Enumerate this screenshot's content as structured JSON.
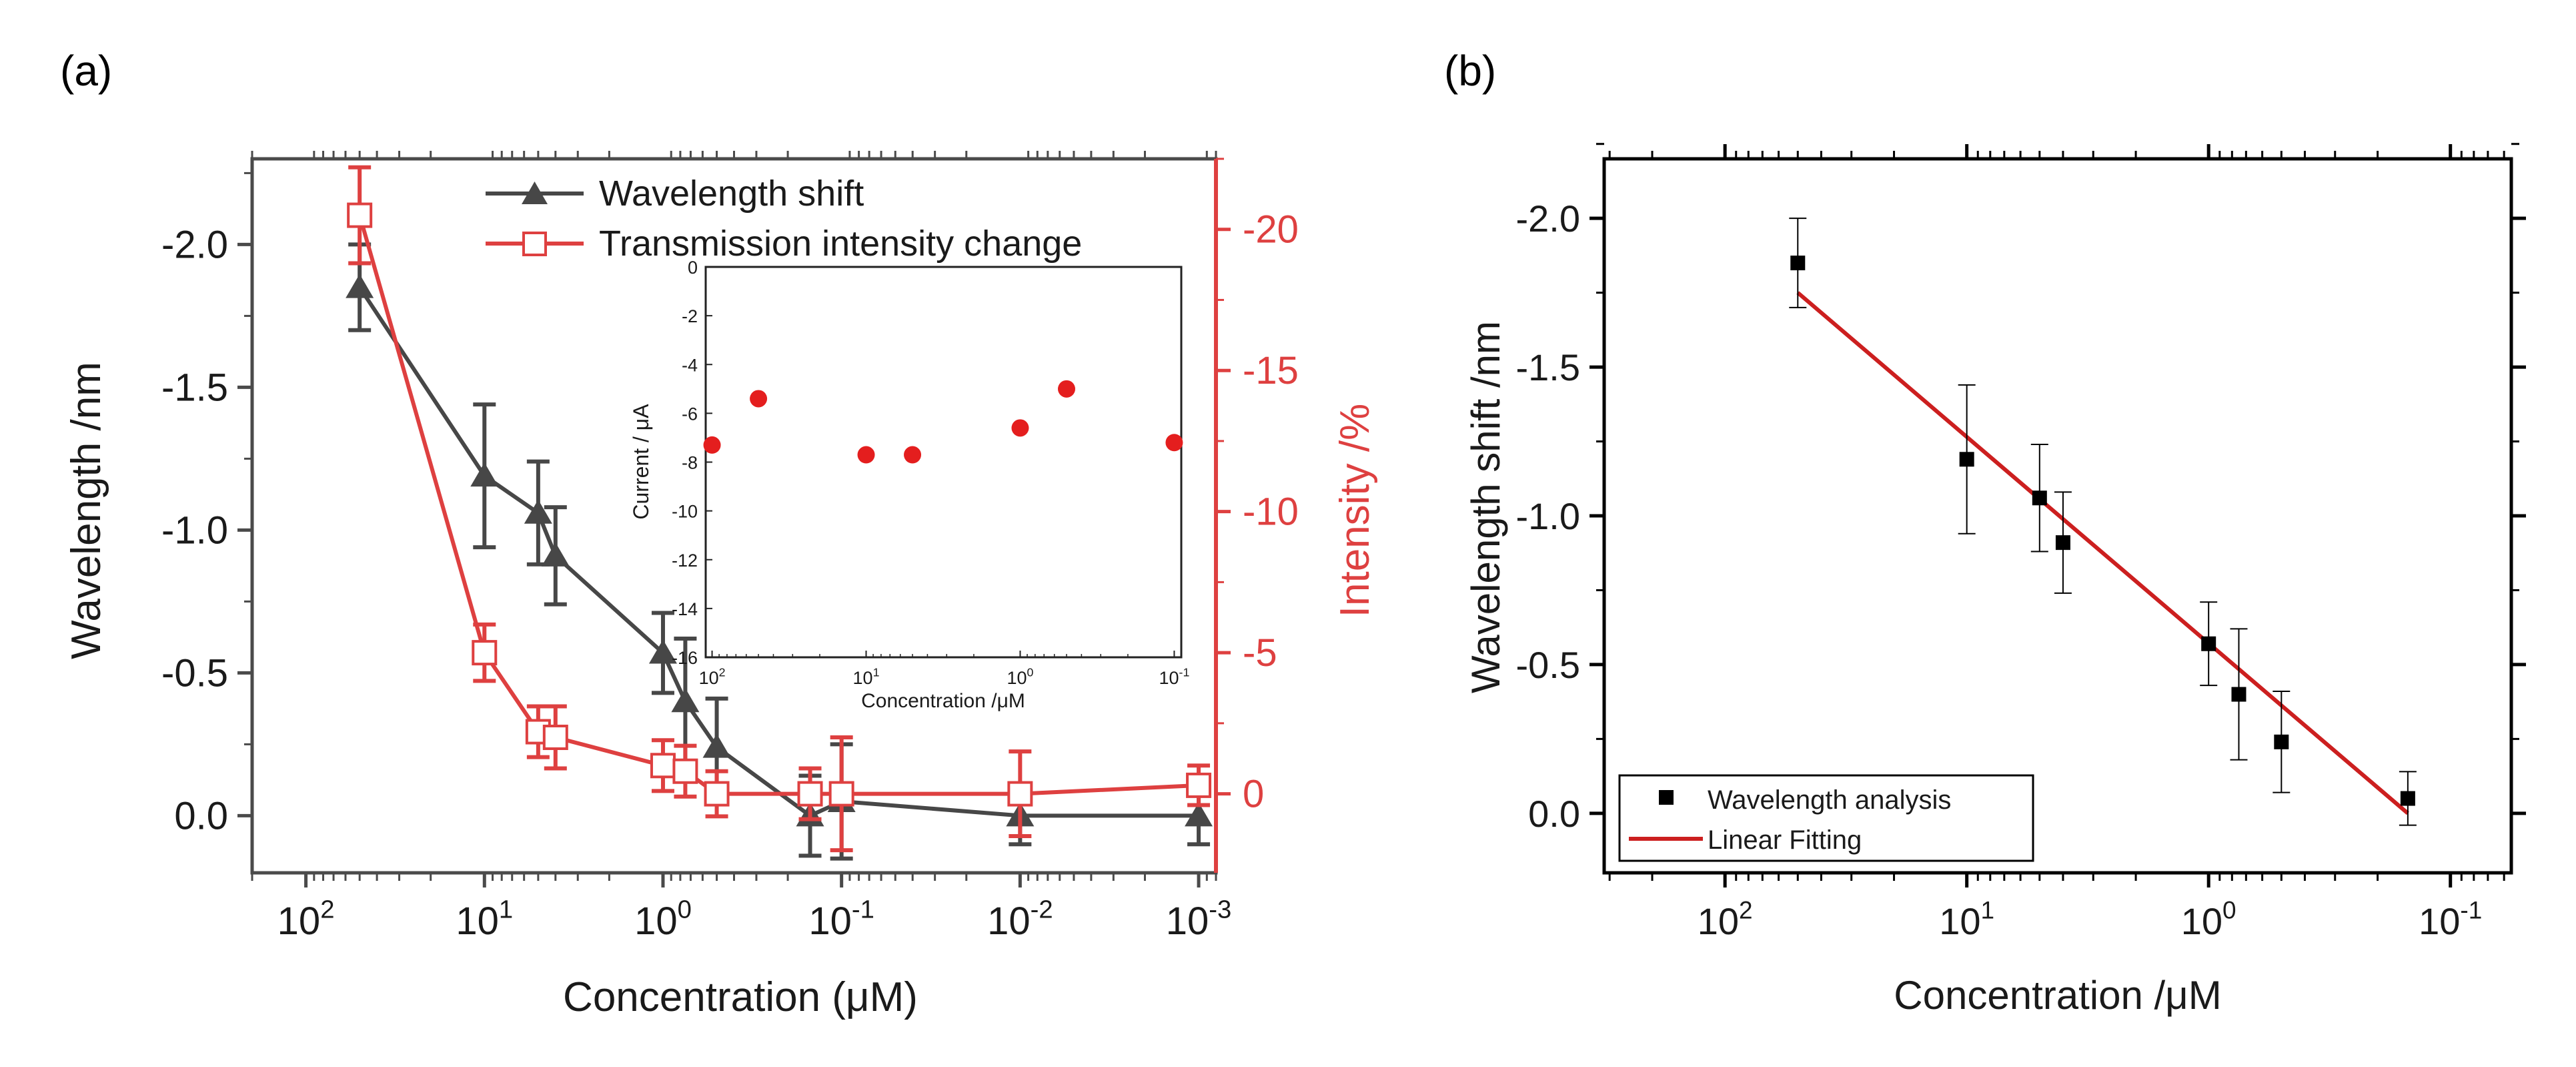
{
  "panels": {
    "a_label": "(a)",
    "b_label": "(b)"
  },
  "colors": {
    "gray": "#474747",
    "red": "#de4040",
    "inset_red": "#e41e1e",
    "fit_red": "#cc1f1f",
    "black": "#000000"
  },
  "chart_data": [
    {
      "id": "a",
      "type": "line",
      "title": "",
      "xlabel": "Concentration (μM)",
      "ylabel_left": "Wavelength /nm",
      "ylabel_right": "Intensity /%",
      "x_scale": "log",
      "x_reversed": true,
      "xlim": [
        200,
        0.0008
      ],
      "x_tick_values": [
        100,
        10,
        1,
        0.1,
        0.01,
        0.001
      ],
      "x_tick_bases": [
        "10",
        "10",
        "10",
        "10",
        "10",
        "10"
      ],
      "x_tick_exps": [
        "2",
        "1",
        "0",
        "-1",
        "-2",
        "-3"
      ],
      "ylim_left": [
        0.2,
        -2.3
      ],
      "y_ticks_left": [
        0.0,
        -0.5,
        -1.0,
        -1.5,
        -2.0
      ],
      "y_tick_labels_left": [
        "0.0",
        "-0.5",
        "-1.0",
        "-1.5",
        "-2.0"
      ],
      "ylim_right": [
        2.8,
        -22.5
      ],
      "y_ticks_right": [
        0,
        -5,
        -10,
        -15,
        -20
      ],
      "y_tick_labels_right": [
        "0",
        "-5",
        "-10",
        "-15",
        "-20"
      ],
      "legend_position": "top-center",
      "series": [
        {
          "name": "Wavelength shift",
          "axis": "left",
          "marker": "filled-triangle",
          "x": [
            50,
            10,
            5,
            4,
            1,
            0.75,
            0.5,
            0.15,
            0.1,
            0.01,
            0.001
          ],
          "y": [
            -1.85,
            -1.19,
            -1.06,
            -0.91,
            -0.57,
            -0.4,
            -0.24,
            0.0,
            -0.05,
            0.0,
            0.0
          ],
          "err": [
            0.15,
            0.25,
            0.18,
            0.17,
            0.14,
            0.22,
            0.17,
            0.14,
            0.2,
            0.1,
            0.1
          ]
        },
        {
          "name": "Transmission intensity change",
          "axis": "right",
          "marker": "open-square",
          "x": [
            50,
            10,
            5,
            4,
            1,
            0.75,
            0.5,
            0.15,
            0.1,
            0.01,
            0.001
          ],
          "y": [
            -20.5,
            -5.0,
            -2.2,
            -2.0,
            -1.0,
            -0.8,
            0.0,
            0.0,
            0.0,
            0.0,
            -0.3
          ],
          "err": [
            1.7,
            1.0,
            0.9,
            1.1,
            0.9,
            0.9,
            0.8,
            0.9,
            2.0,
            1.5,
            0.7
          ]
        }
      ],
      "inset": {
        "type": "scatter",
        "xlabel": "Concentration /μM",
        "ylabel": "Current / μA",
        "x_scale": "log",
        "x_reversed": true,
        "xlim": [
          110,
          0.09
        ],
        "x_tick_values": [
          100,
          10,
          1,
          0.1
        ],
        "x_tick_bases": [
          "10",
          "10",
          "10",
          "10"
        ],
        "x_tick_exps": [
          "2",
          "1",
          "0",
          "-1"
        ],
        "ylim": [
          -16,
          0
        ],
        "y_ticks": [
          0,
          -2,
          -4,
          -6,
          -8,
          -10,
          -12,
          -14,
          -16
        ],
        "y_tick_labels": [
          "0",
          "-2",
          "-4",
          "-6",
          "-8",
          "-10",
          "-12",
          "-14",
          "-16"
        ],
        "points": {
          "x": [
            100,
            50,
            10,
            5,
            1,
            0.5,
            0.1
          ],
          "y": [
            -7.3,
            -5.4,
            -7.7,
            -7.7,
            -6.6,
            -5.0,
            -7.2
          ]
        }
      }
    },
    {
      "id": "b",
      "type": "scatter",
      "title": "",
      "xlabel": "Concentration /μM",
      "ylabel": "Wavelength shift /nm",
      "x_scale": "log",
      "x_reversed": true,
      "xlim": [
        316,
        0.056
      ],
      "x_tick_values": [
        100,
        10,
        1,
        0.1
      ],
      "x_tick_bases": [
        "10",
        "10",
        "10",
        "10"
      ],
      "x_tick_exps": [
        "2",
        "1",
        "0",
        "-1"
      ],
      "ylim": [
        0.2,
        -2.2
      ],
      "y_ticks": [
        0.0,
        -0.5,
        -1.0,
        -1.5,
        -2.0
      ],
      "y_tick_labels": [
        "0.0",
        "-0.5",
        "-1.0",
        "-1.5",
        "-2.0"
      ],
      "legend_position": "bottom-left",
      "series": [
        {
          "name": "Wavelength analysis",
          "marker": "filled-square",
          "x": [
            50,
            10,
            5,
            4,
            1,
            0.75,
            0.5,
            0.15
          ],
          "y": [
            -1.85,
            -1.19,
            -1.06,
            -0.91,
            -0.57,
            -0.4,
            -0.24,
            -0.05
          ],
          "err": [
            0.15,
            0.25,
            0.18,
            0.17,
            0.14,
            0.22,
            0.17,
            0.09
          ]
        }
      ],
      "fit": {
        "name": "Linear Fitting",
        "x": [
          50,
          0.15
        ],
        "y": [
          -1.75,
          0.0
        ]
      }
    }
  ]
}
